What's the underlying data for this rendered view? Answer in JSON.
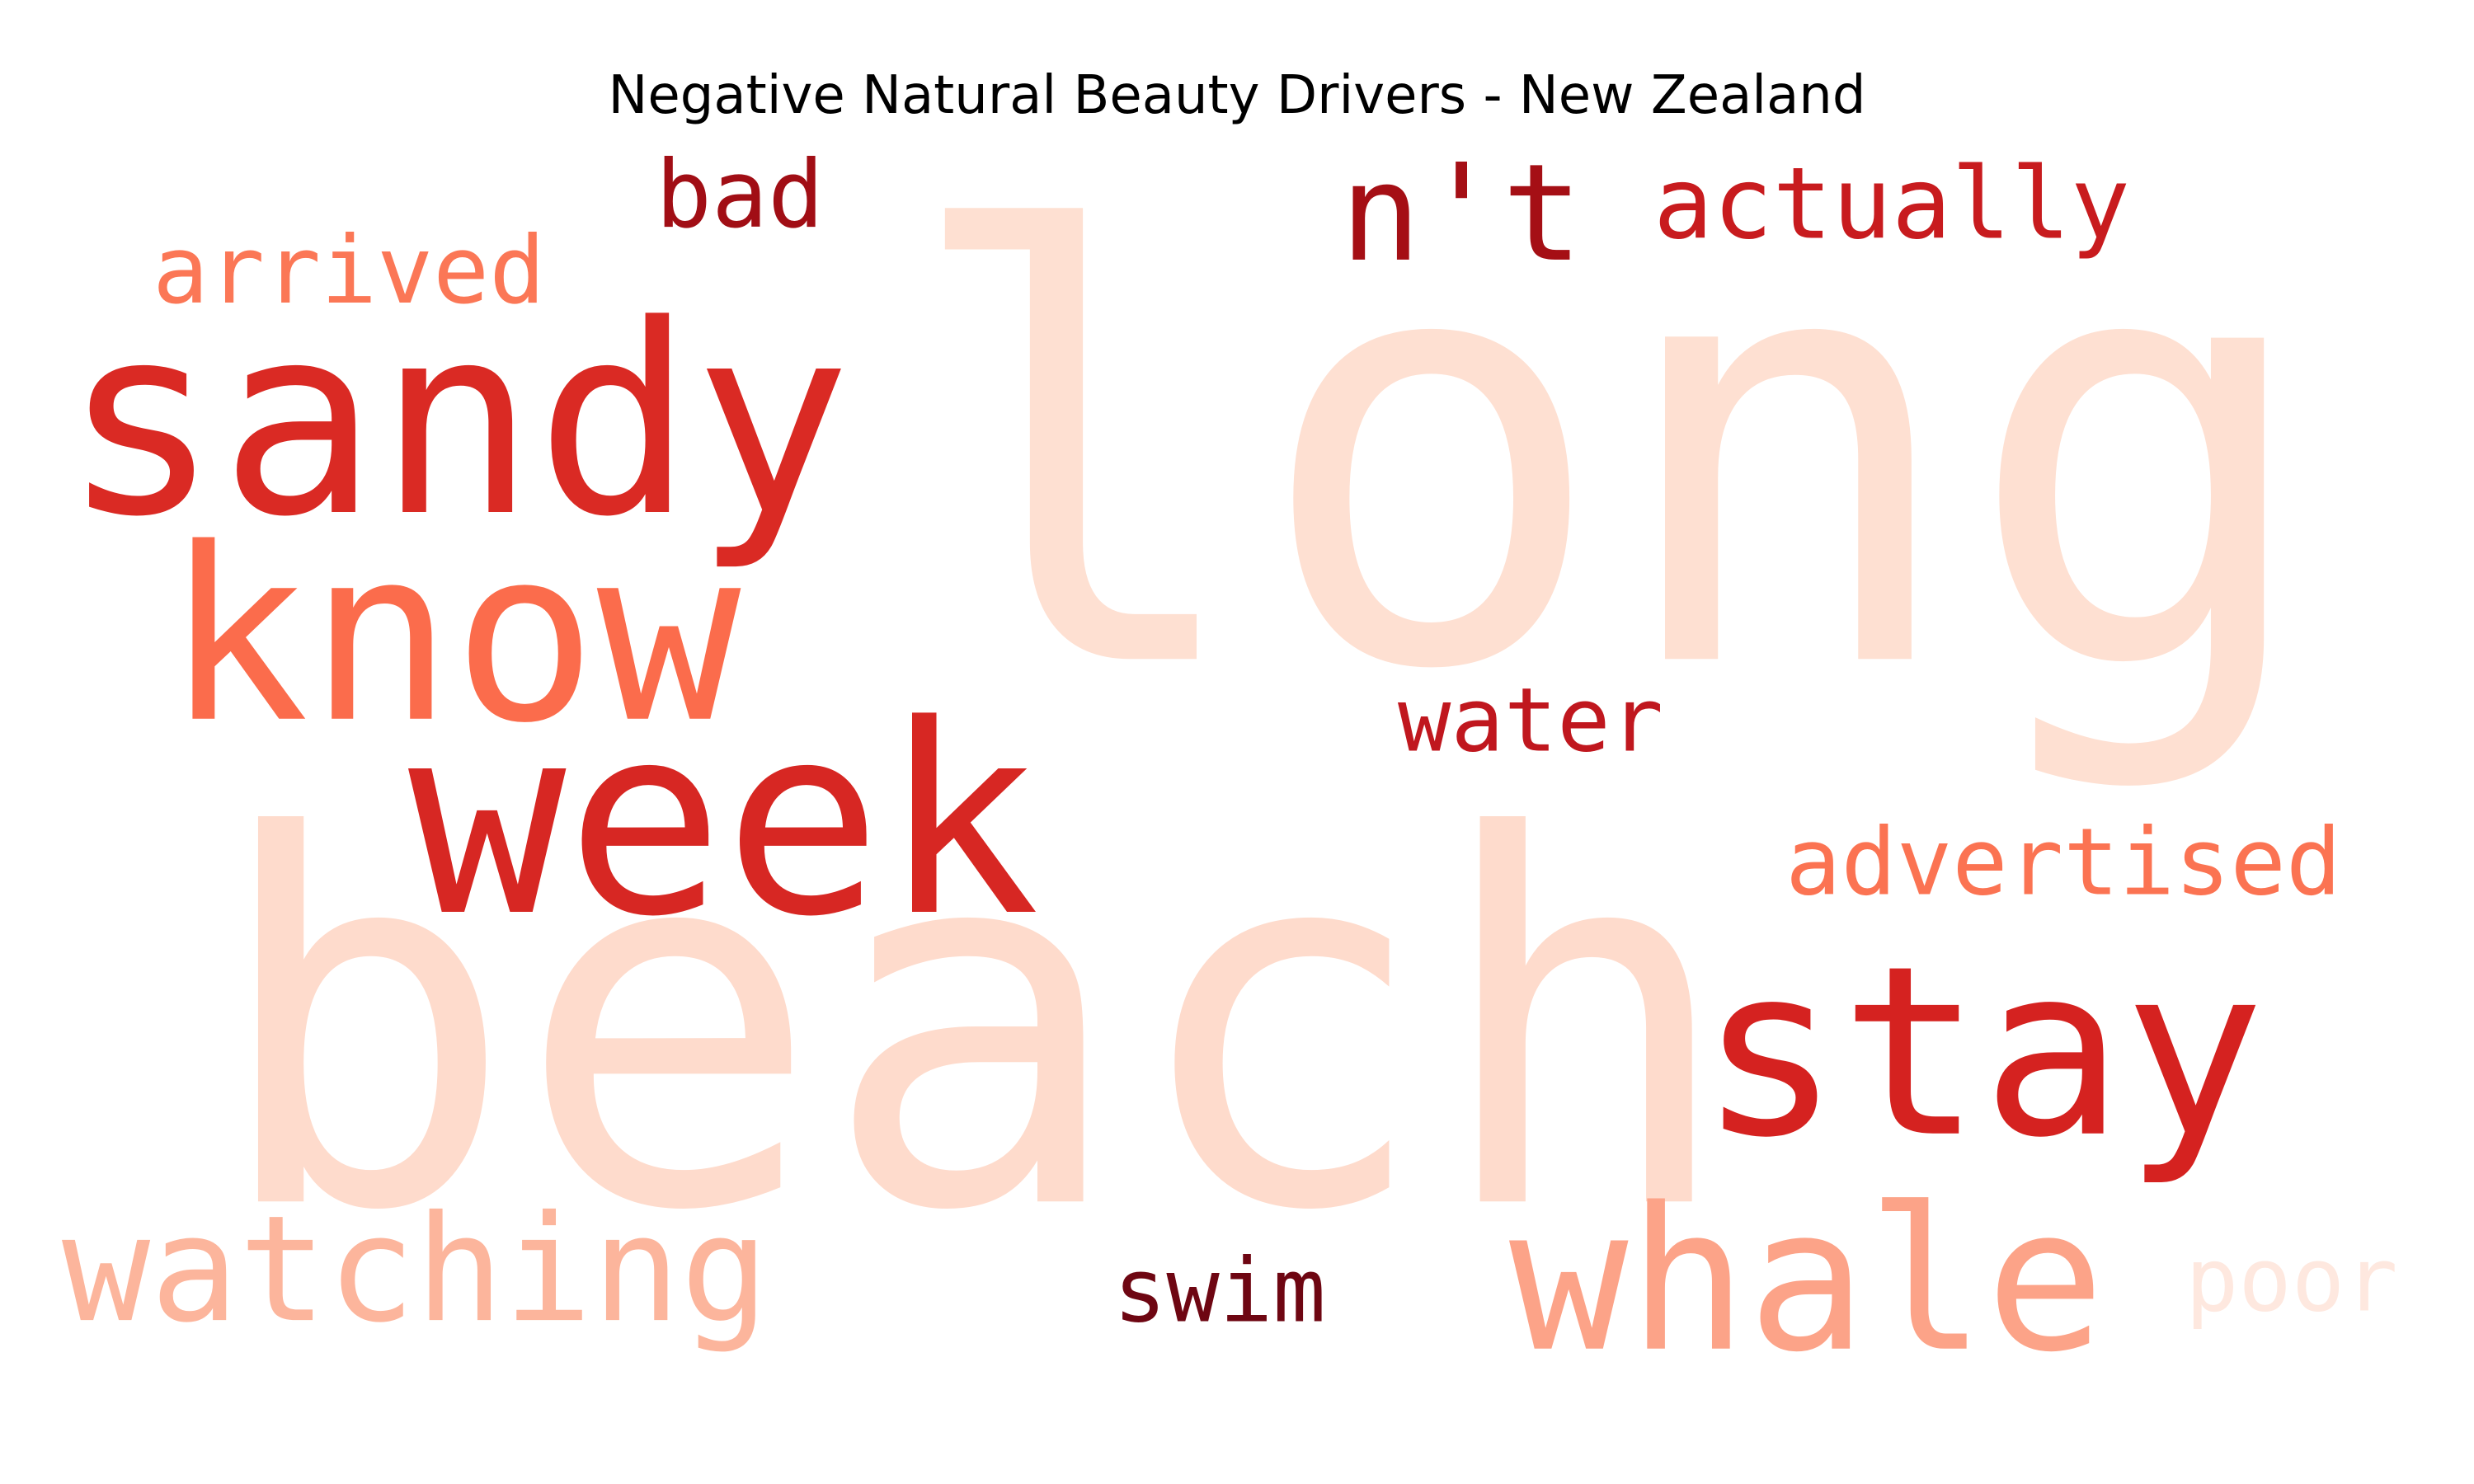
{
  "title": "Negative Natural Beauty Drivers - New Zealand",
  "words": [
    {
      "text": "long",
      "color": "#fee0d2"
    },
    {
      "text": "beach",
      "color": "#fedbcc"
    },
    {
      "text": "sandy",
      "color": "#da2a24"
    },
    {
      "text": "week",
      "color": "#d72723"
    },
    {
      "text": "know",
      "color": "#fb6c4c"
    },
    {
      "text": "stay",
      "color": "#d52220"
    },
    {
      "text": "whale",
      "color": "#fca388"
    },
    {
      "text": "watching",
      "color": "#fcb59c"
    },
    {
      "text": "n't",
      "color": "#a50f15"
    },
    {
      "text": "actually",
      "color": "#c81b1e"
    },
    {
      "text": "bad",
      "color": "#a10e15"
    },
    {
      "text": "arrived",
      "color": "#fb7756"
    },
    {
      "text": "water",
      "color": "#c0171e"
    },
    {
      "text": "advertised",
      "color": "#fb7352"
    },
    {
      "text": "swim",
      "color": "#6e0612"
    },
    {
      "text": "poor",
      "color": "#fee8df"
    }
  ]
}
